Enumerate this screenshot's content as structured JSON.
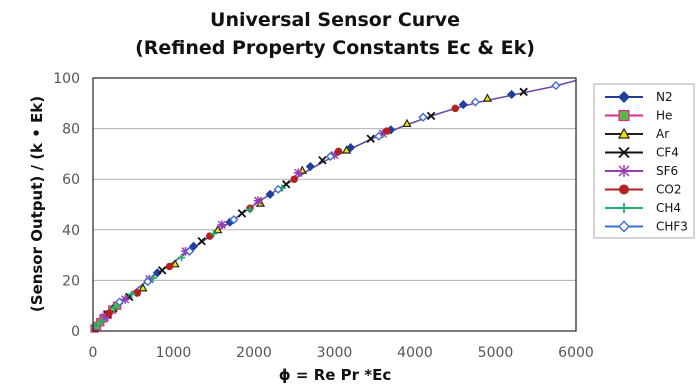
{
  "chart_data": {
    "type": "scatter",
    "title": "Universal Sensor Curve",
    "subtitle": "(Refined Property Constants Ec & Ek)",
    "xlabel": "ϕ = Re Pr *Ec",
    "ylabel": "(Sensor Output) / (k • Ek)",
    "xlim": [
      0,
      6000
    ],
    "ylim": [
      0,
      100
    ],
    "xticks": [
      "0",
      "1000",
      "2000",
      "3000",
      "4000",
      "5000",
      "6000"
    ],
    "yticks": [
      "0",
      "20",
      "40",
      "60",
      "80",
      "100"
    ],
    "grid": "horizontal",
    "legend_position": "right",
    "curve": {
      "x": [
        0,
        100,
        200,
        300,
        400,
        500,
        700,
        900,
        1100,
        1300,
        1500,
        1700,
        1900,
        2100,
        2300,
        2500,
        2700,
        2900,
        3100,
        3300,
        3500,
        3700,
        3900,
        4200,
        4500,
        4800,
        5100,
        5400,
        5700,
        6000
      ],
      "y": [
        0,
        4,
        7.5,
        10.5,
        13,
        15.5,
        20.5,
        25,
        29.5,
        34,
        38.5,
        43,
        47.5,
        52,
        56,
        60,
        64,
        67.5,
        70.5,
        73.5,
        76.5,
        79,
        81.5,
        85,
        88,
        90.5,
        92.5,
        94.5,
        96.5,
        99
      ]
    },
    "series": [
      {
        "name": "N2",
        "marker": "diamond",
        "color": "#1f3f9f",
        "x": [
          60,
          320,
          800,
          1250,
          1700,
          2200,
          2700,
          3200,
          3700,
          4100,
          4600,
          5200
        ],
        "y": [
          2.5,
          11,
          23,
          33.5,
          43,
          54,
          65,
          72.5,
          79.5,
          84.5,
          89.5,
          93.5
        ]
      },
      {
        "name": "He",
        "marker": "square",
        "color": "#e8288c",
        "fill": "#5bb54a",
        "x": [
          20,
          50,
          90,
          130,
          180,
          240,
          300
        ],
        "y": [
          1,
          2,
          3.5,
          5,
          6.5,
          8.5,
          10
        ]
      },
      {
        "name": "Ar",
        "marker": "triangle",
        "color": "#222222",
        "fill": "#f2e600",
        "x": [
          250,
          620,
          1020,
          1550,
          2080,
          2600,
          3150,
          3900,
          4900
        ],
        "y": [
          9,
          17,
          26.5,
          40,
          50.5,
          63.5,
          71.5,
          82,
          92
        ]
      },
      {
        "name": "CF4",
        "marker": "x",
        "color": "#111111",
        "x": [
          180,
          450,
          860,
          1350,
          1850,
          2400,
          2850,
          3450,
          4200,
          5350
        ],
        "y": [
          6.5,
          13.5,
          24,
          35.5,
          46.5,
          58,
          67.5,
          76,
          85,
          94.5
        ]
      },
      {
        "name": "SF6",
        "marker": "asterisk",
        "color": "#9b3ab5",
        "x": [
          150,
          400,
          700,
          1150,
          1600,
          2050,
          2550,
          3000,
          3600
        ],
        "y": [
          5.5,
          12.5,
          20.5,
          31.5,
          42,
          51.5,
          62.5,
          69.5,
          78
        ]
      },
      {
        "name": "CO2",
        "marker": "circle",
        "color": "#b22020",
        "x": [
          200,
          550,
          950,
          1450,
          1950,
          2500,
          3050,
          3650,
          4500
        ],
        "y": [
          7,
          15,
          25.5,
          37.5,
          48.5,
          60,
          71,
          79,
          88
        ]
      },
      {
        "name": "CH4",
        "marker": "plus",
        "color": "#20b070",
        "x": [
          40,
          110,
          260,
          480,
          750,
          1100,
          1500,
          1950,
          2350
        ],
        "y": [
          2,
          4,
          9,
          14.5,
          21,
          29,
          38.5,
          48,
          56.5
        ]
      },
      {
        "name": "CHF3",
        "marker": "diamond-open",
        "color": "#3f6fd0",
        "x": [
          330,
          680,
          1200,
          1750,
          2300,
          2950,
          3550,
          4100,
          4750,
          5750
        ],
        "y": [
          11.5,
          19.5,
          31.5,
          44,
          56,
          69,
          77,
          84.5,
          90.5,
          97
        ]
      }
    ]
  }
}
